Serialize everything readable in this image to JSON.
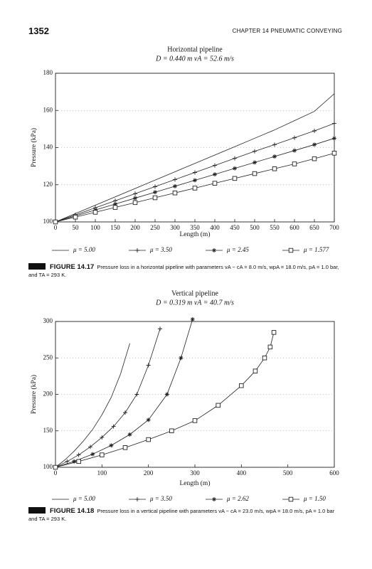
{
  "header": {
    "page_number": "1352",
    "running_title": "CHAPTER 14 PNEUMATIC CONVEYING"
  },
  "chart_data": [
    {
      "type": "line",
      "title": "Horizontal pipeline",
      "subtitle": "D = 0.440 m   vA = 52.6 m/s",
      "x_label": "Length (m)",
      "y_label": "Pressure (kPa)",
      "x": [
        0,
        50,
        100,
        150,
        200,
        250,
        300,
        350,
        400,
        450,
        500,
        550,
        600,
        650,
        700
      ],
      "xlim": [
        0,
        700
      ],
      "xticks": [
        0,
        50,
        100,
        150,
        200,
        250,
        300,
        350,
        400,
        450,
        500,
        550,
        600,
        650,
        700
      ],
      "ylim": [
        100,
        180
      ],
      "yticks": [
        100,
        120,
        140,
        160,
        180
      ],
      "grid": true,
      "series": [
        {
          "name": "μ = 5.00",
          "color": "#222222",
          "marker": "none",
          "values": [
            100,
            104.5,
            109,
            113.5,
            118,
            122.5,
            127,
            131.5,
            136,
            140.5,
            145,
            149.5,
            154.5,
            159.5,
            169
          ]
        },
        {
          "name": "μ = 3.50",
          "color": "#222222",
          "marker": "plus",
          "values": [
            100,
            103.8,
            107.6,
            111.4,
            115.2,
            119,
            122.8,
            126.6,
            130.4,
            134.2,
            138,
            141.6,
            145.3,
            149,
            153
          ]
        },
        {
          "name": "μ = 2.45",
          "color": "#222222",
          "marker": "star",
          "values": [
            100,
            103.2,
            106.4,
            109.6,
            112.8,
            116,
            119.2,
            122.4,
            125.6,
            128.8,
            132,
            135.2,
            138.4,
            141.6,
            145
          ]
        },
        {
          "name": "μ = 1.577",
          "color": "#222222",
          "marker": "square",
          "values": [
            100,
            102.6,
            105.2,
            107.8,
            110.4,
            113,
            115.6,
            118.2,
            120.8,
            123.4,
            126,
            128.6,
            131.2,
            134,
            137
          ]
        }
      ]
    },
    {
      "type": "line",
      "title": "Vertical pipeline",
      "subtitle": "D = 0.319 m   vA = 40.7 m/s",
      "x_label": "Length (m)",
      "y_label": "Pressure (kPa)",
      "xlim": [
        0,
        600
      ],
      "xticks": [
        0,
        100,
        200,
        300,
        400,
        500,
        600
      ],
      "ylim": [
        100,
        300
      ],
      "yticks": [
        100,
        150,
        200,
        250,
        300
      ],
      "grid": true,
      "series": [
        {
          "name": "μ = 5.00",
          "color": "#222222",
          "marker": "none",
          "x": [
            0,
            20,
            40,
            60,
            80,
            100,
            120,
            140,
            160
          ],
          "values": [
            100,
            110,
            122,
            136,
            152,
            172,
            196,
            228,
            270
          ]
        },
        {
          "name": "μ = 3.50",
          "color": "#222222",
          "marker": "plus",
          "x": [
            0,
            25,
            50,
            75,
            100,
            125,
            150,
            175,
            200,
            225
          ],
          "values": [
            100,
            108,
            117,
            128,
            141,
            156,
            175,
            200,
            240,
            290
          ]
        },
        {
          "name": "μ = 2.62",
          "color": "#222222",
          "marker": "star",
          "x": [
            0,
            40,
            80,
            120,
            160,
            200,
            240,
            270,
            295
          ],
          "values": [
            100,
            108,
            118,
            130,
            145,
            165,
            200,
            250,
            303
          ]
        },
        {
          "name": "μ = 1.50",
          "color": "#222222",
          "marker": "square",
          "x": [
            0,
            50,
            100,
            150,
            200,
            250,
            300,
            350,
            400,
            430,
            450,
            462,
            470
          ],
          "values": [
            100,
            108,
            117,
            127,
            138,
            150,
            164,
            185,
            212,
            232,
            250,
            265,
            285
          ]
        }
      ]
    }
  ],
  "captions": [
    {
      "label": "FIGURE 14.17",
      "text": "Pressure loss in a horizontal pipeline with parameters vA − cA = 8.0 m/s, wpA = 18.0 m/s, pA = 1.0 bar, and TA = 293 K."
    },
    {
      "label": "FIGURE 14.18",
      "text": "Pressure loss in a vertical pipeline with parameters vA − cA = 23.0 m/s, wpA = 18.0 m/s, pA = 1.0 bar and TA = 293 K."
    }
  ]
}
